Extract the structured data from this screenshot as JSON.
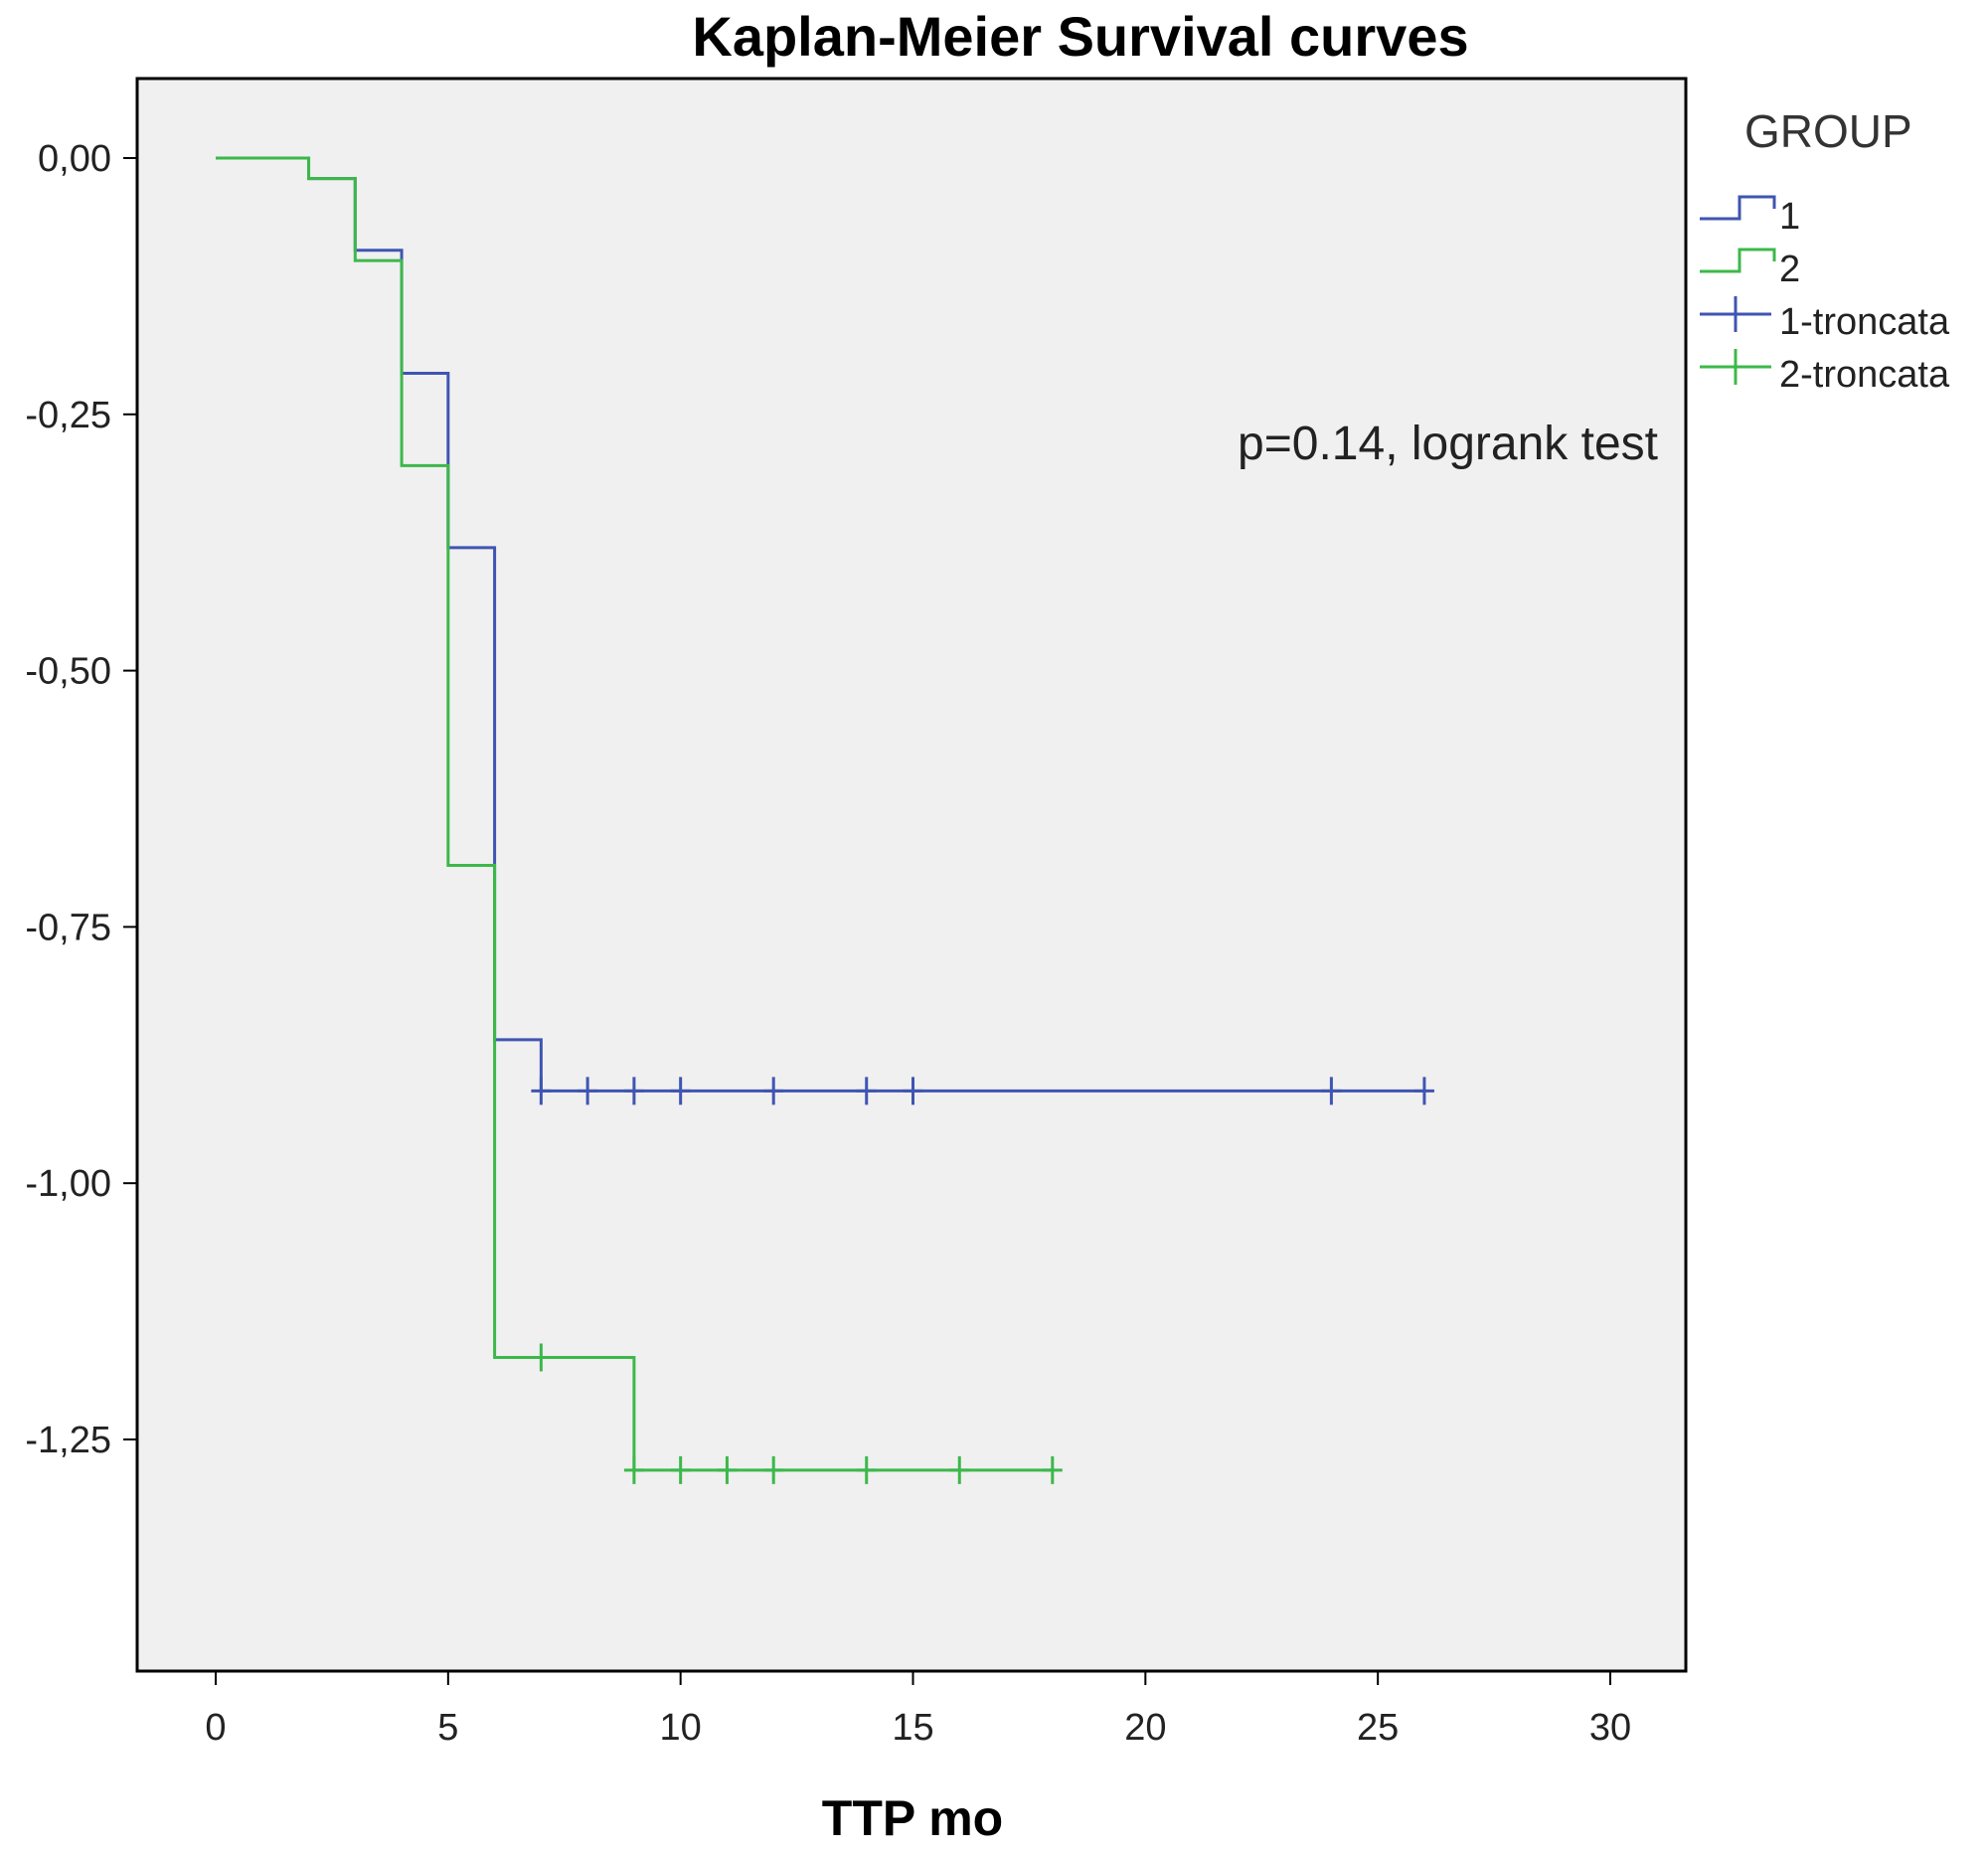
{
  "chart_data": {
    "type": "line",
    "subtype": "kaplan-meier step",
    "title": "Kaplan-Meier Survival curves",
    "xlabel": "TTP mo",
    "ylabel": "",
    "xlim": [
      0,
      30
    ],
    "ylim": [
      -1.45,
      0.08
    ],
    "x_ticks": [
      0,
      5,
      10,
      15,
      20,
      25,
      30
    ],
    "x_tick_labels": [
      "0",
      "5",
      "10",
      "15",
      "20",
      "25",
      "30"
    ],
    "y_ticks": [
      0,
      -0.25,
      -0.5,
      -0.75,
      -1.0,
      -1.25
    ],
    "y_tick_labels": [
      "0,00",
      "-0,25",
      "-0,50",
      "-0,75",
      "-1,00",
      "-1,25"
    ],
    "grid": false,
    "background": "#f0f0f0",
    "legend": {
      "title": "GROUP",
      "placement": "right",
      "entries": [
        "1",
        "2",
        "1-troncata",
        "2-troncata"
      ]
    },
    "annotation": "p=0.14, logrank test",
    "series": [
      {
        "name": "1",
        "color": "#3f55b2",
        "steps": [
          [
            0,
            0
          ],
          [
            2,
            -0.02
          ],
          [
            3,
            -0.09
          ],
          [
            4,
            -0.21
          ],
          [
            5,
            -0.38
          ],
          [
            6,
            -0.86
          ],
          [
            7,
            -0.91
          ],
          [
            26,
            -0.91
          ]
        ],
        "censored_x": [
          7,
          8,
          9,
          10,
          12,
          14,
          15,
          24,
          26
        ]
      },
      {
        "name": "2",
        "color": "#3cb84a",
        "steps": [
          [
            0,
            0
          ],
          [
            2,
            -0.02
          ],
          [
            3,
            -0.1
          ],
          [
            4,
            -0.3
          ],
          [
            5,
            -0.69
          ],
          [
            6,
            -1.17
          ],
          [
            9,
            -1.28
          ],
          [
            18,
            -1.28
          ]
        ],
        "censored_x": [
          7,
          9,
          10,
          11,
          12,
          14,
          16,
          18
        ]
      }
    ]
  }
}
